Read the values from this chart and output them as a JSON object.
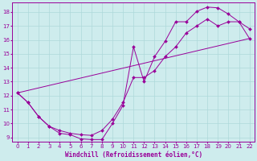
{
  "xlabel": "Windchill (Refroidissement éolien,°C)",
  "bg_color": "#ceeced",
  "grid_color": "#aed8da",
  "line_color": "#990099",
  "xlim": [
    -0.5,
    22.5
  ],
  "ylim": [
    8.7,
    18.7
  ],
  "xticks": [
    0,
    1,
    2,
    3,
    4,
    5,
    6,
    7,
    8,
    9,
    10,
    11,
    12,
    13,
    14,
    15,
    16,
    17,
    18,
    19,
    20,
    21,
    22
  ],
  "yticks": [
    9,
    10,
    11,
    12,
    13,
    14,
    15,
    16,
    17,
    18
  ],
  "series1_x": [
    0,
    1,
    2,
    3,
    4,
    5,
    6,
    7,
    8,
    9,
    10,
    11,
    12,
    13,
    14,
    15,
    16,
    17,
    18,
    19,
    20,
    21,
    22
  ],
  "series1_y": [
    12.2,
    11.5,
    10.5,
    9.8,
    9.3,
    9.2,
    8.9,
    8.85,
    8.85,
    10.0,
    11.3,
    15.5,
    13.0,
    14.8,
    15.9,
    17.3,
    17.3,
    18.05,
    18.35,
    18.3,
    17.85,
    17.3,
    16.8
  ],
  "series2_x": [
    0,
    1,
    2,
    3,
    4,
    5,
    6,
    7,
    8,
    9,
    10,
    11,
    12,
    13,
    14,
    15,
    16,
    17,
    18,
    19,
    20,
    21,
    22
  ],
  "series2_y": [
    12.2,
    11.5,
    10.5,
    9.8,
    9.5,
    9.3,
    9.2,
    9.15,
    9.5,
    10.3,
    11.5,
    13.3,
    13.3,
    13.8,
    14.8,
    15.5,
    16.5,
    17.0,
    17.5,
    17.0,
    17.3,
    17.3,
    16.1
  ],
  "series3_x": [
    0,
    22
  ],
  "series3_y": [
    12.2,
    16.1
  ]
}
